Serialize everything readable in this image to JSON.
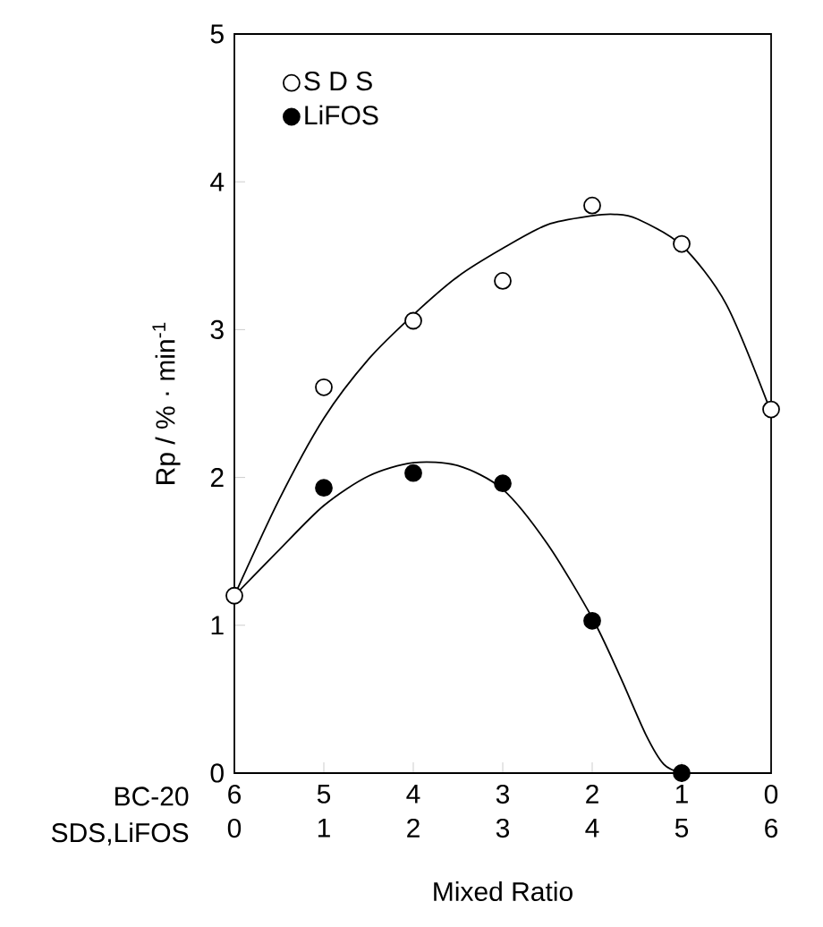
{
  "chart_data": {
    "type": "scatter",
    "xlabel": "Mixed Ratio",
    "ylabel": "Rp  / % · min$^{-1}$",
    "x2label": "BC-20",
    "annotations": [
      "SDS,LiFOS"
    ],
    "xlim": [
      0,
      6
    ],
    "xticks": [
      0,
      1,
      2,
      3,
      4,
      5,
      6
    ],
    "x2lim": [
      6,
      0
    ],
    "x2ticks": [
      6,
      5,
      4,
      3,
      2,
      1,
      0
    ],
    "ylim": [
      0,
      5
    ],
    "yticks": [
      0,
      1,
      2,
      3,
      4,
      5
    ],
    "legend": "top left",
    "series": [
      {
        "name": "S D S",
        "marker": "circle",
        "color": "#ffffff",
        "x": [
          0,
          1,
          2,
          3,
          4,
          5,
          6
        ],
        "values": [
          1.2,
          2.61,
          3.06,
          3.33,
          3.84,
          3.58,
          2.46
        ]
      },
      {
        "name": "LiFOS",
        "marker": "circle",
        "color": "#000000",
        "x": [
          1,
          2,
          3,
          4,
          5
        ],
        "values": [
          1.93,
          2.03,
          1.96,
          1.03,
          0.0
        ]
      },
      {
        "type": "line",
        "marker": "none",
        "color": "#000000",
        "x": [
          0,
          0.5,
          1,
          1.5,
          2,
          2.5,
          3,
          3.5,
          4,
          4.25,
          4.5,
          5,
          5.5,
          6
        ],
        "values": [
          1.2,
          1.85,
          2.4,
          2.8,
          3.1,
          3.36,
          3.55,
          3.71,
          3.77,
          3.78,
          3.75,
          3.57,
          3.17,
          2.44
        ]
      },
      {
        "type": "line",
        "marker": "none",
        "color": "#000000",
        "x": [
          0,
          0.5,
          1,
          1.5,
          2,
          2.5,
          3,
          3.5,
          4,
          4.3,
          4.6,
          4.8,
          5
        ],
        "values": [
          1.2,
          1.51,
          1.81,
          2.01,
          2.1,
          2.08,
          1.92,
          1.55,
          1.05,
          0.67,
          0.26,
          0.06,
          0.0
        ]
      }
    ]
  }
}
